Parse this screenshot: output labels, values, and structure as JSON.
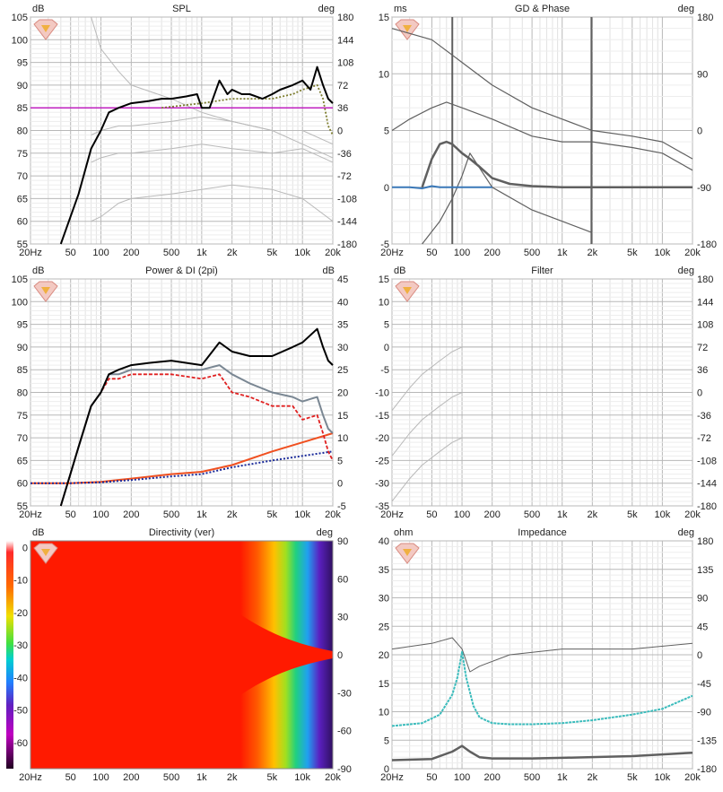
{
  "panels": {
    "spl": {
      "title": "SPL",
      "left_unit": "dB",
      "right_unit": "deg",
      "y_ticks": [
        "105",
        "100",
        "95",
        "90",
        "85",
        "80",
        "75",
        "70",
        "65",
        "60",
        "55"
      ],
      "r_ticks": [
        "180",
        "144",
        "108",
        "72",
        "36",
        "0",
        "-36",
        "-72",
        "-108",
        "-144",
        "-180"
      ]
    },
    "gd": {
      "title": "GD & Phase",
      "left_unit": "ms",
      "right_unit": "deg",
      "y_ticks": [
        "15",
        "10",
        "5",
        "0",
        "-5"
      ],
      "r_ticks": [
        "180",
        "90",
        "0",
        "-90",
        "-180"
      ]
    },
    "power": {
      "title": "Power & DI (2pi)",
      "left_unit": "dB",
      "right_unit": "dB",
      "y_ticks": [
        "105",
        "100",
        "95",
        "90",
        "85",
        "80",
        "75",
        "70",
        "65",
        "60",
        "55"
      ],
      "r_ticks": [
        "45",
        "40",
        "35",
        "30",
        "25",
        "20",
        "15",
        "10",
        "5",
        "0",
        "-5"
      ]
    },
    "filter": {
      "title": "Filter",
      "left_unit": "dB",
      "right_unit": "deg",
      "y_ticks": [
        "15",
        "10",
        "5",
        "0",
        "-5",
        "-10",
        "-15",
        "-20",
        "-25",
        "-30",
        "-35"
      ],
      "r_ticks": [
        "180",
        "144",
        "108",
        "72",
        "36",
        "0",
        "-36",
        "-72",
        "-108",
        "-144",
        "-180"
      ]
    },
    "directivity": {
      "title": "Directivity (ver)",
      "left_unit": "dB",
      "right_unit": "deg",
      "scale_ticks": [
        "0",
        "-10",
        "-20",
        "-30",
        "-40",
        "-50",
        "-60"
      ],
      "r_ticks": [
        "90",
        "60",
        "30",
        "0",
        "-30",
        "-60",
        "-90"
      ]
    },
    "impedance": {
      "title": "Impedance",
      "left_unit": "ohm",
      "right_unit": "deg",
      "y_ticks": [
        "40",
        "35",
        "30",
        "25",
        "20",
        "15",
        "10",
        "5",
        "0"
      ],
      "r_ticks": [
        "180",
        "135",
        "90",
        "45",
        "0",
        "-45",
        "-90",
        "-135",
        "-180"
      ]
    }
  },
  "x_ticks": [
    "20Hz",
    "50",
    "100",
    "200",
    "500",
    "1k",
    "2k",
    "5k",
    "10k",
    "20k"
  ],
  "colors": {
    "spl_on_axis": "#000000",
    "spl_power": "#7d7d2e",
    "spl_ref": "#c020c0",
    "gray": "#b9b9b9",
    "dark": "#606060",
    "phase_blue": "#3a78b8",
    "power_gray": "#7a8793",
    "power_red": "#e02020",
    "di_orange": "#f05020",
    "di_blue": "#1a2a9a",
    "imp_teal": "#3bbcbc"
  },
  "chart_data": [
    {
      "type": "line",
      "title": "SPL",
      "xlabel": "",
      "ylabel": "dB",
      "xscale": "log",
      "xlim": [
        20,
        20000
      ],
      "ylim": [
        55,
        105
      ],
      "series": [
        {
          "x": [
            40,
            60,
            80,
            100,
            120,
            150,
            200,
            300,
            400,
            500,
            700,
            900,
            1000,
            1200,
            1500,
            1800,
            2000,
            2500,
            3000,
            4000,
            5000,
            6000,
            8000,
            10000,
            12000,
            14000,
            16000,
            18000,
            20000
          ],
          "values": [
            55,
            66,
            76,
            80,
            84,
            85,
            86,
            86.5,
            87,
            87,
            87.5,
            88,
            85,
            85,
            91,
            88,
            89,
            88,
            88,
            87,
            88,
            89,
            90,
            91,
            89,
            94,
            90,
            87,
            86
          ]
        },
        {
          "x": [
            400,
            1000,
            2000,
            5000,
            8000,
            10000,
            14000,
            16000,
            18000,
            20000
          ],
          "values": [
            85,
            86,
            87,
            87,
            88,
            89,
            90,
            87,
            81,
            79
          ]
        },
        {
          "x": [
            20,
            20000
          ],
          "values": [
            85,
            85
          ]
        },
        {
          "x": [
            80,
            100,
            150,
            200,
            500,
            1000,
            2000,
            5000,
            10000,
            20000
          ],
          "values": [
            105,
            98,
            93,
            90,
            87,
            84,
            82,
            80,
            77,
            74
          ]
        },
        {
          "x": [
            80,
            100,
            150,
            200,
            500,
            1000,
            2000,
            5000,
            10000,
            20000
          ],
          "values": [
            79,
            80,
            81,
            81,
            82,
            83,
            82,
            80,
            80,
            77
          ]
        },
        {
          "x": [
            80,
            100,
            150,
            200,
            500,
            1000,
            2000,
            5000,
            10000,
            20000
          ],
          "values": [
            73,
            74,
            75,
            75,
            76,
            77,
            76,
            75,
            76,
            73
          ]
        },
        {
          "x": [
            80,
            100,
            150,
            200,
            500,
            1000,
            2000,
            5000,
            10000,
            20000
          ],
          "values": [
            60,
            61,
            64,
            65,
            66,
            67,
            68,
            67,
            65,
            60
          ]
        }
      ]
    },
    {
      "type": "line",
      "title": "GD & Phase",
      "xlabel": "",
      "ylabel": "ms",
      "xscale": "log",
      "xlim": [
        20,
        20000
      ],
      "ylim": [
        -5,
        15
      ],
      "series": [
        {
          "x": [
            40,
            50,
            60,
            70,
            80,
            100,
            120,
            150,
            200,
            300,
            500,
            1000,
            2000,
            3000,
            5000,
            8000,
            10000,
            20000
          ],
          "values": [
            0,
            2.5,
            3.8,
            4,
            3.8,
            3,
            2.5,
            1.8,
            0.8,
            0.3,
            0.1,
            0,
            0,
            0,
            0,
            0,
            0,
            0
          ]
        },
        {
          "x": [
            20,
            30,
            40,
            50,
            60,
            80,
            100,
            150,
            200
          ],
          "values": [
            0,
            0,
            -0.1,
            0.1,
            0,
            0,
            0,
            0,
            0
          ]
        },
        {
          "x": [
            20,
            30,
            50,
            70,
            100,
            200,
            500,
            1000,
            2000,
            5000,
            10000,
            20000
          ],
          "values": [
            5,
            6,
            7,
            7.5,
            7,
            6,
            4.5,
            4,
            4,
            3.5,
            3,
            1.5
          ]
        },
        {
          "x": [
            20,
            50,
            100,
            200,
            500,
            1000,
            2000,
            5000,
            10000,
            20000
          ],
          "values": [
            14,
            13,
            11,
            9,
            7,
            6,
            5,
            4.5,
            4,
            2.5
          ]
        },
        {
          "x": [
            40,
            60,
            80,
            100,
            120,
            200,
            500,
            1000,
            2000
          ],
          "values": [
            -5,
            -3,
            -1,
            1,
            3,
            0,
            -2,
            -3,
            -4
          ]
        }
      ]
    },
    {
      "type": "line",
      "title": "Power & DI (2pi)",
      "xlabel": "",
      "ylabel": "dB",
      "xscale": "log",
      "xlim": [
        20,
        20000
      ],
      "ylim": [
        55,
        105
      ],
      "series": [
        {
          "x": [
            40,
            60,
            80,
            100,
            120,
            150,
            200,
            300,
            500,
            1000,
            1500,
            2000,
            3000,
            5000,
            8000,
            10000,
            14000,
            16000,
            18000,
            20000
          ],
          "values": [
            55,
            68,
            77,
            80,
            84,
            85,
            86,
            86.5,
            87,
            86,
            91,
            89,
            88,
            88,
            90,
            91,
            94,
            90,
            87,
            86
          ]
        },
        {
          "x": [
            40,
            60,
            80,
            100,
            120,
            150,
            200,
            300,
            500,
            1000,
            1500,
            2000,
            3000,
            5000,
            8000,
            10000,
            14000,
            16000,
            18000,
            20000
          ],
          "values": [
            55,
            68,
            77,
            80,
            84,
            84,
            85,
            85,
            85,
            85,
            86,
            84,
            82,
            80,
            79,
            78,
            79,
            75,
            72,
            71
          ]
        },
        {
          "x": [
            40,
            60,
            80,
            100,
            120,
            150,
            200,
            300,
            500,
            1000,
            1500,
            2000,
            3000,
            5000,
            8000,
            10000,
            14000,
            16000,
            18000,
            20000
          ],
          "values": [
            55,
            68,
            77,
            80,
            83,
            83,
            84,
            84,
            84,
            83,
            84,
            80,
            79,
            77,
            77,
            74,
            75,
            71,
            67,
            65
          ]
        },
        {
          "x": [
            20,
            50,
            100,
            200,
            500,
            1000,
            2000,
            5000,
            10000,
            20000
          ],
          "values": [
            0,
            0,
            0.3,
            1,
            2,
            2.5,
            4,
            7,
            9,
            11
          ]
        },
        {
          "x": [
            20,
            50,
            100,
            200,
            500,
            1000,
            2000,
            5000,
            10000,
            20000
          ],
          "values": [
            0,
            0,
            0.2,
            0.7,
            1.5,
            2,
            3.5,
            5,
            6,
            7
          ]
        }
      ]
    },
    {
      "type": "line",
      "title": "Filter",
      "xlabel": "",
      "ylabel": "dB",
      "xscale": "log",
      "xlim": [
        20,
        20000
      ],
      "ylim": [
        -35,
        15
      ],
      "series": [
        {
          "x": [
            20,
            30,
            40,
            60,
            80,
            100,
            150,
            200
          ],
          "values": [
            -14,
            -9,
            -6,
            -3,
            -1,
            0,
            0,
            0
          ]
        },
        {
          "x": [
            20,
            30,
            40,
            60,
            80,
            100,
            150,
            200
          ],
          "values": [
            -24,
            -19,
            -16,
            -13,
            -11,
            -10,
            -10,
            -10
          ]
        },
        {
          "x": [
            20,
            30,
            40,
            60,
            80,
            100,
            150,
            200
          ],
          "values": [
            -34,
            -29,
            -26,
            -23,
            -21,
            -20,
            -20,
            -20
          ]
        }
      ]
    },
    {
      "type": "heatmap",
      "title": "Directivity (ver)",
      "xlabel": "",
      "ylabel": "deg",
      "xscale": "log",
      "xlim": [
        20,
        20000
      ],
      "ylim": [
        -90,
        90
      ],
      "zlim": [
        -60,
        0
      ]
    },
    {
      "type": "line",
      "title": "Impedance",
      "xlabel": "",
      "ylabel": "ohm",
      "xscale": "log",
      "xlim": [
        20,
        20000
      ],
      "ylim": [
        0,
        40
      ],
      "series": [
        {
          "x": [
            20,
            40,
            60,
            80,
            90,
            100,
            110,
            130,
            150,
            200,
            300,
            500,
            1000,
            2000,
            5000,
            10000,
            20000
          ],
          "values": [
            7.5,
            8,
            9.5,
            13,
            16,
            20.5,
            16,
            11,
            9,
            8,
            7.8,
            7.8,
            8,
            8.5,
            9.5,
            10.5,
            12.8
          ]
        },
        {
          "x": [
            20,
            50,
            80,
            100,
            120,
            150,
            200,
            500,
            1000,
            5000,
            20000
          ],
          "values": [
            1.5,
            1.7,
            3,
            4,
            3,
            2,
            1.8,
            1.8,
            1.9,
            2.2,
            2.8
          ]
        },
        {
          "x": [
            20,
            50,
            80,
            100,
            120,
            150,
            300,
            1000,
            5000,
            20000
          ],
          "values": [
            21,
            22,
            23,
            21,
            17,
            18,
            20,
            21,
            21,
            22
          ]
        }
      ]
    }
  ]
}
